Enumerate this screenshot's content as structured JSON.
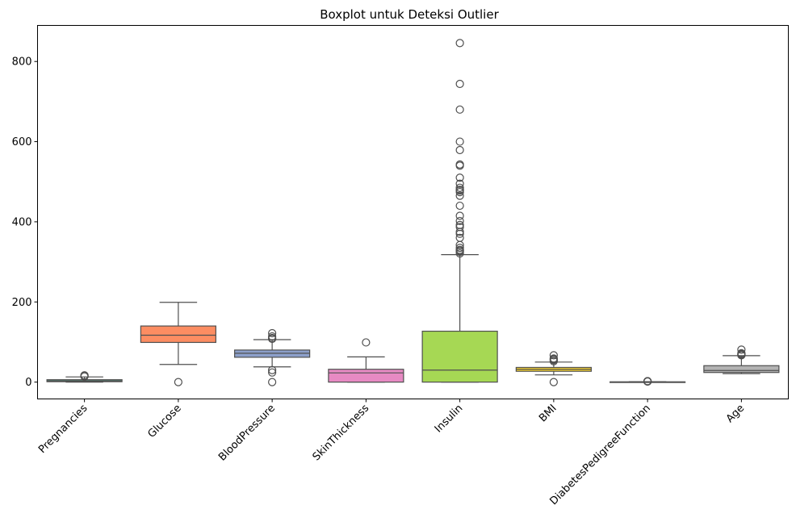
{
  "chart_data": {
    "type": "boxplot",
    "title": "Boxplot untuk Deteksi Outlier",
    "xlabel": "",
    "ylabel": "",
    "ylim": [
      -42,
      890
    ],
    "yticks": [
      0,
      200,
      400,
      600,
      800
    ],
    "grid": false,
    "legend": "none",
    "categories": [
      "Pregnancies",
      "Glucose",
      "BloodPressure",
      "SkinThickness",
      "Insulin",
      "BMI",
      "DiabetesPedigreeFunction",
      "Age"
    ],
    "boxes": [
      {
        "name": "Pregnancies",
        "color": "#66c2a5",
        "whislo": 0,
        "q1": 1,
        "med": 3,
        "q3": 6,
        "whishi": 13,
        "fliers": [
          14,
          15,
          17
        ]
      },
      {
        "name": "Glucose",
        "color": "#fc8d62",
        "whislo": 44,
        "q1": 99,
        "med": 117,
        "q3": 140,
        "whishi": 199,
        "fliers": [
          0
        ]
      },
      {
        "name": "BloodPressure",
        "color": "#8da0cb",
        "whislo": 38,
        "q1": 62,
        "med": 72,
        "q3": 80,
        "whishi": 106,
        "fliers": [
          0,
          24,
          30,
          108,
          110,
          114,
          122
        ]
      },
      {
        "name": "SkinThickness",
        "color": "#e78ac3",
        "whislo": 0,
        "q1": 0,
        "med": 23,
        "q3": 32,
        "whishi": 63,
        "fliers": [
          99
        ]
      },
      {
        "name": "Insulin",
        "color": "#a6d854",
        "whislo": 0,
        "q1": 0,
        "med": 30,
        "q3": 127,
        "whishi": 318,
        "fliers": [
          321,
          325,
          328,
          330,
          335,
          342,
          360,
          370,
          375,
          387,
          392,
          402,
          415,
          440,
          465,
          474,
          478,
          480,
          485,
          495,
          510,
          540,
          543,
          579,
          600,
          680,
          744,
          846
        ]
      },
      {
        "name": "BMI",
        "color": "#ffd92f",
        "whislo": 18,
        "q1": 27,
        "med": 32,
        "q3": 36.6,
        "whishi": 50,
        "fliers": [
          0,
          52,
          55,
          57,
          59,
          67
        ]
      },
      {
        "name": "DiabetesPedigreeFunction",
        "color": "#e5c494",
        "whislo": 0.08,
        "q1": 0.24,
        "med": 0.37,
        "q3": 0.63,
        "whishi": 1.19,
        "fliers": [
          1.4,
          1.6,
          1.9,
          2.1,
          2.3,
          2.42
        ]
      },
      {
        "name": "Age",
        "color": "#b3b3b3",
        "whislo": 21,
        "q1": 24,
        "med": 29,
        "q3": 41,
        "whishi": 66,
        "fliers": [
          67,
          68,
          69,
          70,
          72,
          81
        ]
      }
    ]
  }
}
